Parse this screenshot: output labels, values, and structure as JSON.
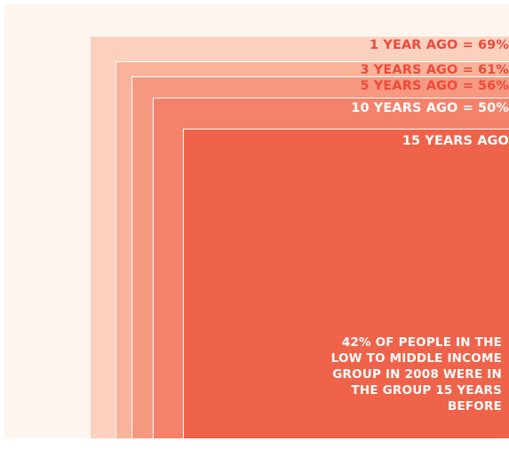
{
  "colors": {
    "page_background": "#fdf5ef",
    "band_1_year": "#fbd0bf",
    "band_3_years": "#f9b39b",
    "band_5_years": "#f79880",
    "band_10_years": "#f4826a",
    "band_15_years": "#f0634b",
    "label_dark": "#ee4a3b",
    "label_light": "#ffffff"
  },
  "bands": [
    {
      "label": "1 YEAR AGO = 69%",
      "percent": 69
    },
    {
      "label": "3 YEARS AGO = 61%",
      "percent": 61
    },
    {
      "label": "5 YEARS AGO = 56%",
      "percent": 56
    },
    {
      "label": "10 YEARS AGO = 50%",
      "percent": 50
    },
    {
      "label": "15 YEARS AGO",
      "percent": 42
    }
  ],
  "note": "42% OF PEOPLE IN THE LOW TO MIDDLE INCOME GROUP IN 2008 WERE IN THE GROUP 15 YEARS BEFORE"
}
